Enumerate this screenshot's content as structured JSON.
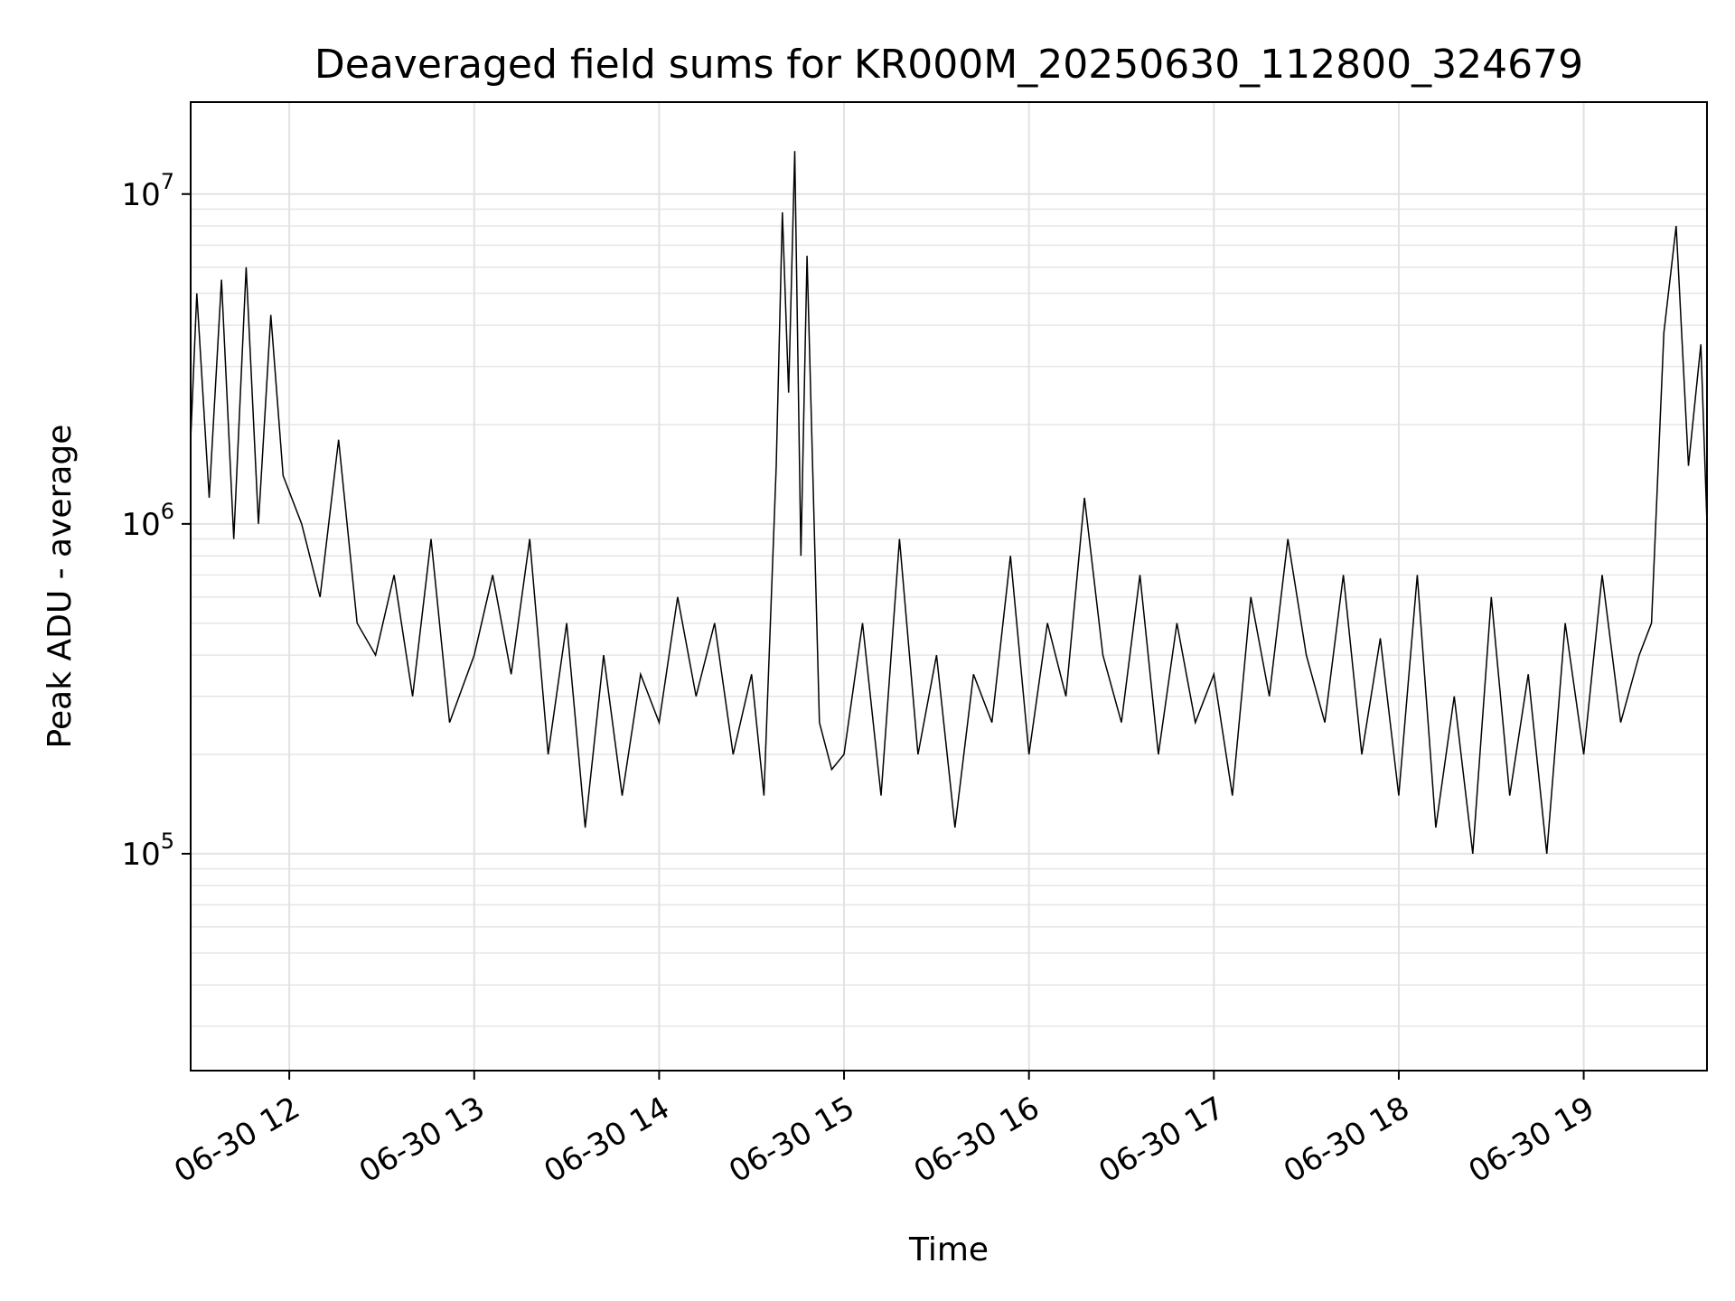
{
  "chart_data": {
    "type": "line",
    "title": "Deaveraged field sums for KR000M_20250630_112800_324679",
    "xlabel": "Time",
    "ylabel": "Peak ADU - average",
    "x_scale": "time",
    "y_scale": "log",
    "xlim": [
      "2025-06-30 11:28",
      "2025-06-30 19:40"
    ],
    "ylim": [
      22000,
      19000000
    ],
    "grid": true,
    "line_color": "#000000",
    "x_ticks": [
      {
        "label": "06-30 12",
        "value": "2025-06-30 12:00"
      },
      {
        "label": "06-30 13",
        "value": "2025-06-30 13:00"
      },
      {
        "label": "06-30 14",
        "value": "2025-06-30 14:00"
      },
      {
        "label": "06-30 15",
        "value": "2025-06-30 15:00"
      },
      {
        "label": "06-30 16",
        "value": "2025-06-30 16:00"
      },
      {
        "label": "06-30 17",
        "value": "2025-06-30 17:00"
      },
      {
        "label": "06-30 18",
        "value": "2025-06-30 18:00"
      },
      {
        "label": "06-30 19",
        "value": "2025-06-30 19:00"
      }
    ],
    "y_ticks": [
      {
        "base": "10",
        "exp": "5",
        "value": 100000
      },
      {
        "base": "10",
        "exp": "6",
        "value": 1000000
      },
      {
        "base": "10",
        "exp": "7",
        "value": 10000000
      }
    ],
    "series": [
      {
        "x": [
          "2025-06-30 11:28",
          "2025-06-30 11:30",
          "2025-06-30 11:34",
          "2025-06-30 11:38",
          "2025-06-30 11:42",
          "2025-06-30 11:46",
          "2025-06-30 11:50",
          "2025-06-30 11:54",
          "2025-06-30 11:58",
          "2025-06-30 12:04",
          "2025-06-30 12:10",
          "2025-06-30 12:16",
          "2025-06-30 12:22",
          "2025-06-30 12:28",
          "2025-06-30 12:34",
          "2025-06-30 12:40",
          "2025-06-30 12:46",
          "2025-06-30 12:52",
          "2025-06-30 13:00",
          "2025-06-30 13:06",
          "2025-06-30 13:12",
          "2025-06-30 13:18",
          "2025-06-30 13:24",
          "2025-06-30 13:30",
          "2025-06-30 13:36",
          "2025-06-30 13:42",
          "2025-06-30 13:48",
          "2025-06-30 13:54",
          "2025-06-30 14:00",
          "2025-06-30 14:06",
          "2025-06-30 14:12",
          "2025-06-30 14:18",
          "2025-06-30 14:24",
          "2025-06-30 14:30",
          "2025-06-30 14:34",
          "2025-06-30 14:38",
          "2025-06-30 14:40",
          "2025-06-30 14:42",
          "2025-06-30 14:44",
          "2025-06-30 14:46",
          "2025-06-30 14:48",
          "2025-06-30 14:52",
          "2025-06-30 14:56",
          "2025-06-30 15:00",
          "2025-06-30 15:06",
          "2025-06-30 15:12",
          "2025-06-30 15:18",
          "2025-06-30 15:24",
          "2025-06-30 15:30",
          "2025-06-30 15:36",
          "2025-06-30 15:42",
          "2025-06-30 15:48",
          "2025-06-30 15:54",
          "2025-06-30 16:00",
          "2025-06-30 16:06",
          "2025-06-30 16:12",
          "2025-06-30 16:18",
          "2025-06-30 16:24",
          "2025-06-30 16:30",
          "2025-06-30 16:36",
          "2025-06-30 16:42",
          "2025-06-30 16:48",
          "2025-06-30 16:54",
          "2025-06-30 17:00",
          "2025-06-30 17:06",
          "2025-06-30 17:12",
          "2025-06-30 17:18",
          "2025-06-30 17:24",
          "2025-06-30 17:30",
          "2025-06-30 17:36",
          "2025-06-30 17:42",
          "2025-06-30 17:48",
          "2025-06-30 17:54",
          "2025-06-30 18:00",
          "2025-06-30 18:06",
          "2025-06-30 18:12",
          "2025-06-30 18:18",
          "2025-06-30 18:24",
          "2025-06-30 18:30",
          "2025-06-30 18:36",
          "2025-06-30 18:42",
          "2025-06-30 18:48",
          "2025-06-30 18:54",
          "2025-06-30 19:00",
          "2025-06-30 19:06",
          "2025-06-30 19:12",
          "2025-06-30 19:18",
          "2025-06-30 19:22",
          "2025-06-30 19:26",
          "2025-06-30 19:30",
          "2025-06-30 19:34",
          "2025-06-30 19:38",
          "2025-06-30 19:40"
        ],
        "y": [
          1800000,
          5000000,
          1200000,
          5500000,
          900000,
          6000000,
          1000000,
          4300000,
          1400000,
          1000000,
          600000,
          1800000,
          500000,
          400000,
          700000,
          300000,
          900000,
          250000,
          400000,
          700000,
          350000,
          900000,
          200000,
          500000,
          120000,
          400000,
          150000,
          350000,
          250000,
          600000,
          300000,
          500000,
          200000,
          350000,
          150000,
          1500000,
          8800000,
          2500000,
          13500000,
          800000,
          6500000,
          250000,
          180000,
          200000,
          500000,
          150000,
          900000,
          200000,
          400000,
          120000,
          350000,
          250000,
          800000,
          200000,
          500000,
          300000,
          1200000,
          400000,
          250000,
          700000,
          200000,
          500000,
          250000,
          350000,
          150000,
          600000,
          300000,
          900000,
          400000,
          250000,
          700000,
          200000,
          450000,
          150000,
          700000,
          120000,
          300000,
          100000,
          600000,
          150000,
          350000,
          100000,
          500000,
          200000,
          700000,
          250000,
          400000,
          500000,
          3800000,
          8000000,
          1500000,
          3500000,
          1000000
        ]
      }
    ]
  }
}
